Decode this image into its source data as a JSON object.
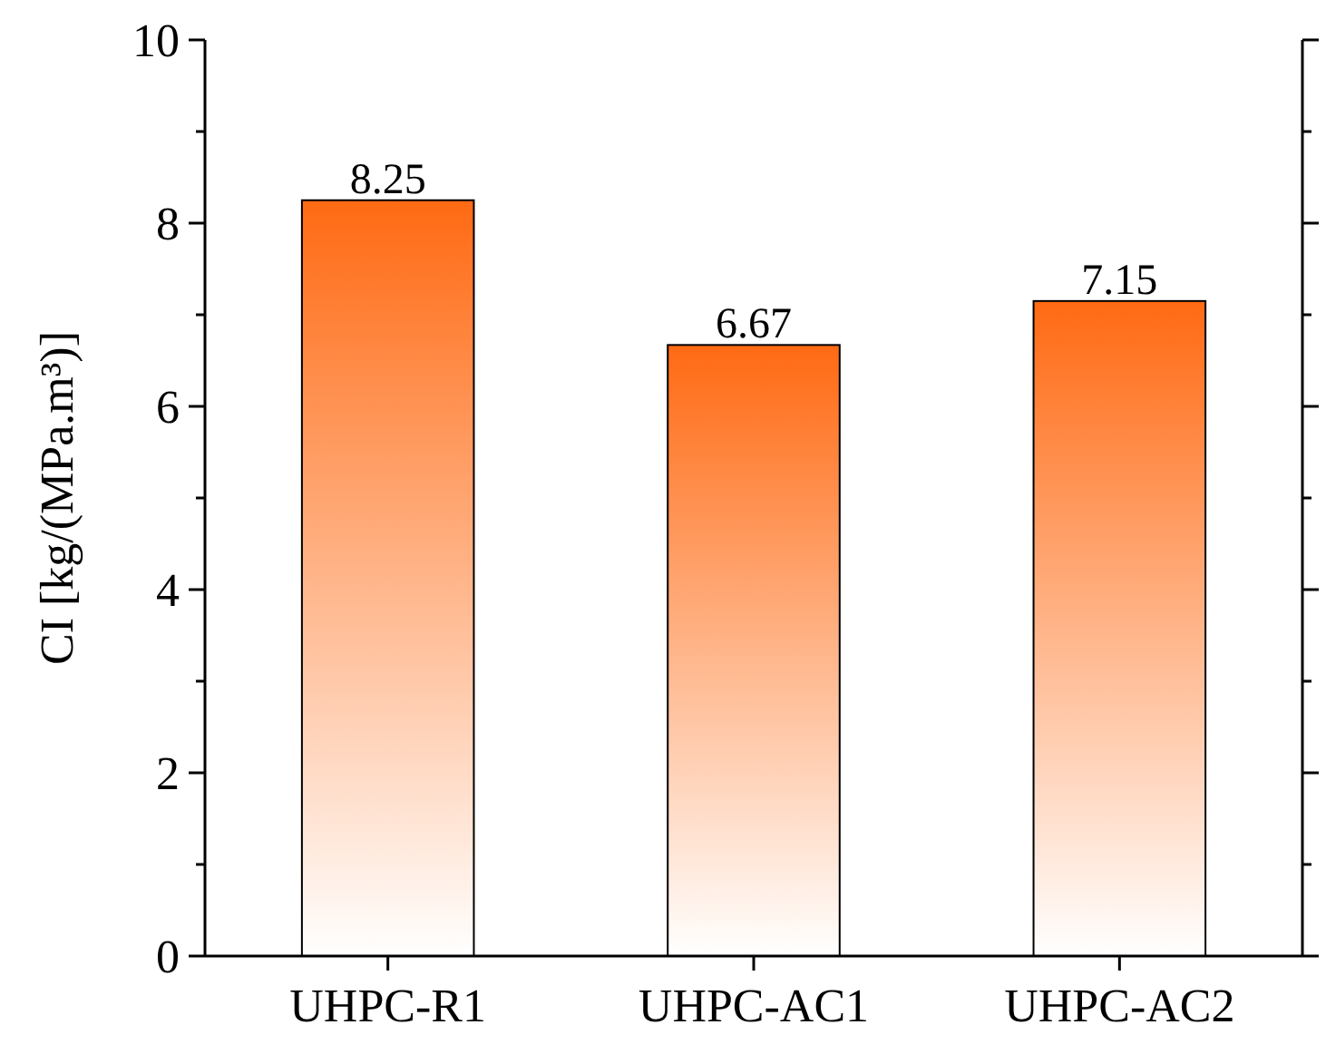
{
  "chart_data": {
    "type": "bar",
    "ylabel": "CI [kg/(MPa.m³)]",
    "categories": [
      "UHPC-R1",
      "UHPC-AC1",
      "UHPC-AC2"
    ],
    "values": [
      8.25,
      6.67,
      7.15
    ],
    "color": "#ff6a13",
    "data_labels": true,
    "ylim": [
      0,
      10
    ],
    "yticks": [
      0,
      {
        "value": 1,
        "label": null
      },
      2,
      {
        "value": 3,
        "label": null
      },
      4,
      {
        "value": 5,
        "label": null
      },
      6,
      {
        "value": 7,
        "label": null
      },
      8,
      {
        "value": 9,
        "label": null
      },
      10
    ],
    "grid": false
  }
}
